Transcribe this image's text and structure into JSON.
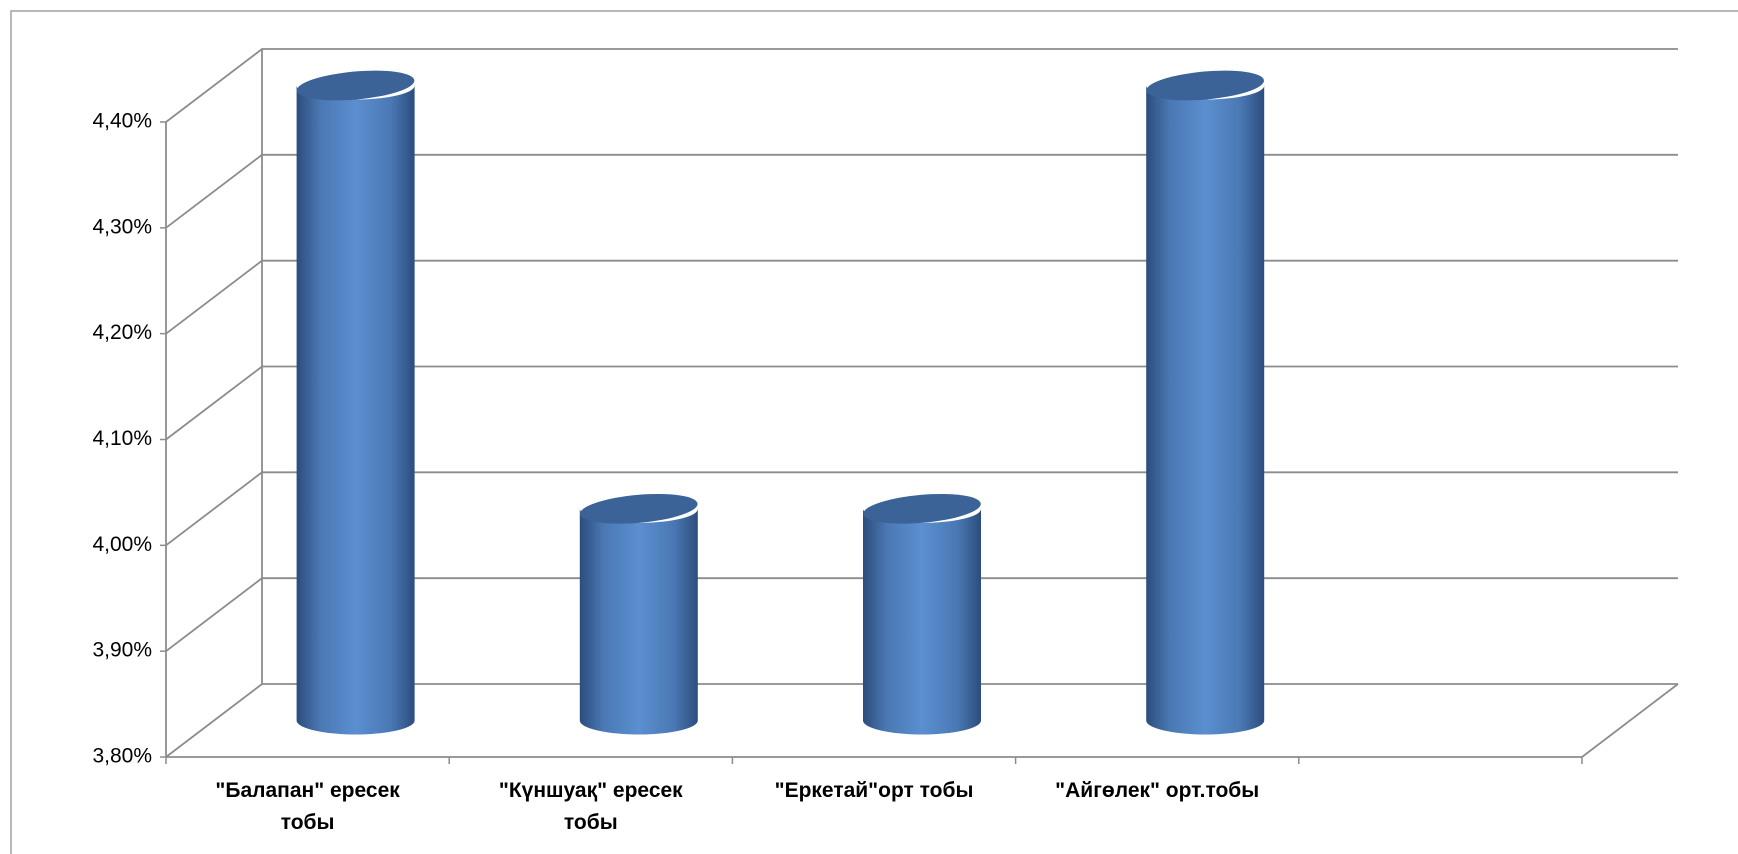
{
  "chart_data": {
    "type": "bar",
    "categories": [
      "\"Балапан\" ересек тобы",
      "\"Күншуақ\" ересек тобы",
      "\"Еркетай\"орт тобы",
      "\"Айгөлек\" орт.тобы",
      null
    ],
    "values": [
      4.4,
      4.0,
      4.0,
      4.4,
      null
    ],
    "color": "#4f81bd",
    "ylim": [
      3.8,
      4.4
    ],
    "yticks": [
      {
        "value": 3.8,
        "label": "3,80%"
      },
      {
        "value": 3.9,
        "label": "3,90%"
      },
      {
        "value": 4.0,
        "label": "4,00%"
      },
      {
        "value": 4.1,
        "label": "4,10%"
      },
      {
        "value": 4.2,
        "label": "4,20%"
      },
      {
        "value": 4.3,
        "label": "4,30%"
      },
      {
        "value": 4.4,
        "label": "4,40%"
      }
    ],
    "grid": true
  }
}
